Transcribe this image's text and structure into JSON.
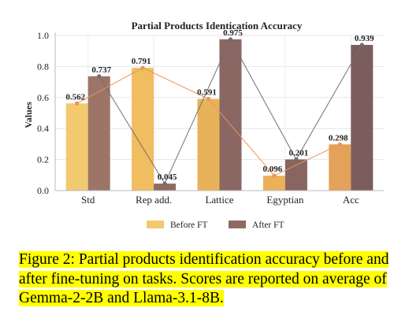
{
  "chart_data": {
    "type": "bar",
    "title": "Partial Products Identication Accuracy",
    "xlabel": "",
    "ylabel": "Values",
    "ylim": [
      0,
      1.0
    ],
    "yticks": [
      "0.0",
      "0.2",
      "0.4",
      "0.6",
      "0.8",
      "1.0"
    ],
    "grid": true,
    "legend_position": "bottom",
    "categories": [
      "Std",
      "Rep add.",
      "Lattice",
      "Egyptian",
      "Acc"
    ],
    "series": [
      {
        "name": "Before FT",
        "values": [
          0.562,
          0.791,
          0.591,
          0.096,
          0.298
        ],
        "labels": [
          "0.562",
          "0.791",
          "0.591",
          "0.096",
          "0.298"
        ],
        "colors": [
          "#f2c96e",
          "#f0bd60",
          "#e8b25a",
          "#ebb05a",
          "#e3a159"
        ],
        "line_color": "#e8955a"
      },
      {
        "name": "After FT",
        "values": [
          0.737,
          0.045,
          0.975,
          0.201,
          0.939
        ],
        "labels": [
          "0.737",
          "0.045",
          "0.975",
          "0.201",
          "0.939"
        ],
        "colors": [
          "#9d7568",
          "#8e6a63",
          "#8b6763",
          "#876560",
          "#7b5d5d"
        ],
        "line_color": "#6e6e6e"
      }
    ]
  },
  "caption": "Figure 2: Partial products identification accuracy before and after fine-tuning on tasks. Scores are reported on average of Gemma-2-2B and Llama-3.1-8B."
}
